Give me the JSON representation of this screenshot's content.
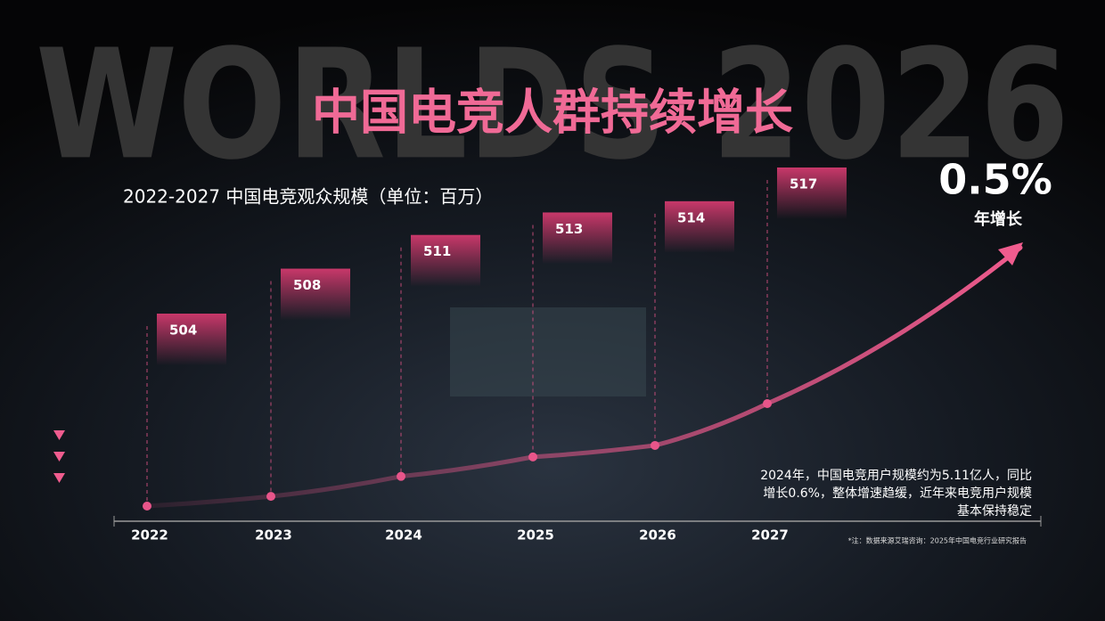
{
  "background_text": "WORLDS 2026",
  "title": "中国电竞人群持续增长",
  "chart_data": {
    "type": "timeline",
    "title": "2022-2027 中国电竞观众规模（单位：百万）",
    "categories": [
      "2022",
      "2023",
      "2024",
      "2025",
      "2026",
      "2027"
    ],
    "values": [
      504,
      508,
      511,
      513,
      514,
      517
    ],
    "color": "#e8558a"
  },
  "highlight": {
    "value": "0.5%",
    "label": "年增长"
  },
  "note": [
    "2024年，中国电竞用户规模约为5.11亿人，同比",
    "增长0.6%，整体增速趋缓，近年来电竞用户规模",
    "基本保持稳定"
  ],
  "source": "*注：数据来源艾瑞咨询：2025年中国电竞行业研究报告"
}
